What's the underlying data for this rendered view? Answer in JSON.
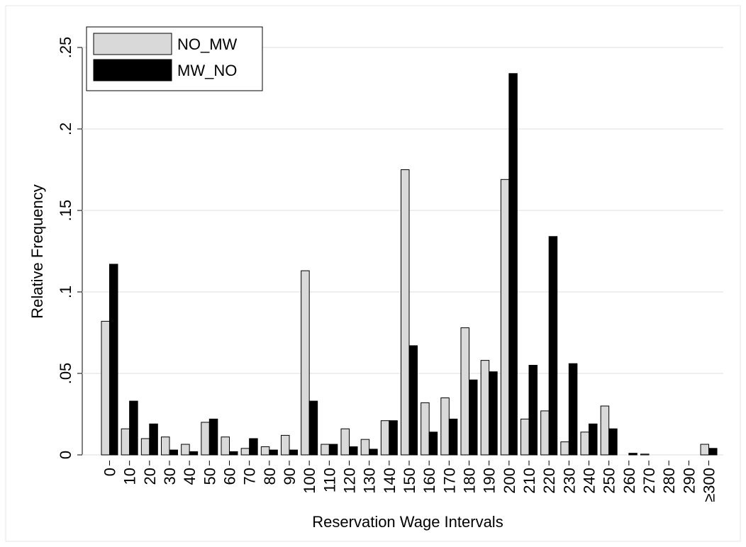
{
  "chart_data": {
    "type": "bar",
    "x_label": "Reservation Wage Intervals",
    "y_label": "Relative Frequency",
    "categories": [
      "0",
      "10",
      "20",
      "30",
      "40",
      "50",
      "60",
      "70",
      "80",
      "90",
      "100",
      "110",
      "120",
      "130",
      "140",
      "150",
      "160",
      "170",
      "180",
      "190",
      "200",
      "210",
      "220",
      "230",
      "240",
      "250",
      "260",
      "270",
      "280",
      "290",
      "≥300"
    ],
    "series": [
      {
        "name": "NO_MW",
        "color": "#d9d9d9",
        "values": [
          0.082,
          0.016,
          0.01,
          0.011,
          0.0065,
          0.02,
          0.011,
          0.004,
          0.005,
          0.012,
          0.113,
          0.0065,
          0.016,
          0.0095,
          0.021,
          0.175,
          0.032,
          0.035,
          0.078,
          0.058,
          0.169,
          0.022,
          0.027,
          0.008,
          0.014,
          0.03,
          0,
          0.0005,
          0,
          0,
          0.0065
        ]
      },
      {
        "name": "MW_NO",
        "color": "#000000",
        "values": [
          0.117,
          0.033,
          0.019,
          0.003,
          0.002,
          0.022,
          0.002,
          0.01,
          0.003,
          0.003,
          0.033,
          0.0065,
          0.005,
          0.0035,
          0.021,
          0.067,
          0.014,
          0.022,
          0.046,
          0.051,
          0.234,
          0.055,
          0.134,
          0.056,
          0.019,
          0.016,
          0.001,
          0,
          0,
          0,
          0.004
        ]
      }
    ],
    "ylim": [
      0,
      0.25
    ],
    "yticks": [
      0,
      {
        "value": 0.05,
        "label": ".05"
      },
      {
        "value": 0.1,
        "label": ".1"
      },
      {
        "value": 0.15,
        "label": ".15"
      },
      {
        "value": 0.2,
        "label": ".2"
      },
      {
        "value": 0.25,
        "label": ".25"
      }
    ],
    "grid": true,
    "legend": "top-left"
  }
}
